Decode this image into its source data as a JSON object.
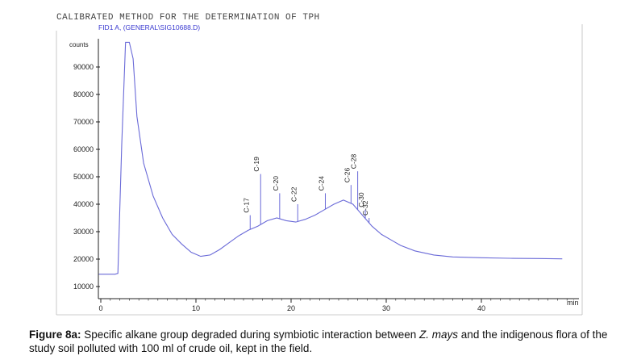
{
  "header": {
    "title": "CALIBRATED METHOD FOR THE DETERMINATION OF TPH",
    "subtitle": "FID1 A, (GENERAL\\SIG10688.D)"
  },
  "chart_data": {
    "type": "line",
    "ylabel": "counts",
    "xlabel": "min",
    "xlim": [
      0,
      50
    ],
    "ylim": [
      4000,
      100000
    ],
    "x_ticks": [
      0,
      10,
      20,
      30,
      40
    ],
    "y_ticks": [
      10000,
      20000,
      30000,
      40000,
      50000,
      60000,
      70000,
      80000,
      90000
    ],
    "grid": false,
    "baseline": {
      "x": [
        -0.2,
        1.5,
        1.8,
        2.2,
        2.6,
        3.0,
        3.4,
        3.8,
        4.5,
        5.5,
        6.5,
        7.5,
        8.5,
        9.5,
        10.5,
        11.5,
        12.5,
        13.5,
        14.5,
        15.5,
        16.5,
        17.5,
        18.5,
        19.5,
        20.5,
        21.5,
        22.5,
        23.5,
        24.5,
        25.5,
        26.5,
        27.5,
        28.5,
        29.5,
        30.5,
        31.5,
        33,
        35,
        37,
        40,
        43,
        46,
        48.5
      ],
      "y": [
        14500,
        14500,
        14800,
        62000,
        99000,
        99000,
        93000,
        72000,
        55000,
        43000,
        35000,
        29000,
        25500,
        22500,
        21000,
        21500,
        23500,
        26000,
        28500,
        30500,
        32000,
        34000,
        35000,
        34000,
        33500,
        34500,
        36000,
        38000,
        40000,
        41500,
        40000,
        36000,
        32000,
        29000,
        27000,
        25000,
        23000,
        21500,
        20800,
        20500,
        20300,
        20200,
        20100
      ]
    },
    "peaks": [
      {
        "label": "C-17",
        "x": 15.7,
        "y": 36000
      },
      {
        "label": "C-19",
        "x": 16.8,
        "y": 51000
      },
      {
        "label": "C-20",
        "x": 18.8,
        "y": 44000
      },
      {
        "label": "C-22",
        "x": 20.7,
        "y": 40000
      },
      {
        "label": "C-24",
        "x": 23.6,
        "y": 44000
      },
      {
        "label": "C-26",
        "x": 26.3,
        "y": 47000
      },
      {
        "label": "C-28",
        "x": 27.0,
        "y": 52000
      },
      {
        "label": "C-30",
        "x": 27.8,
        "y": 38000
      },
      {
        "label": "C-32",
        "x": 28.2,
        "y": 35000
      }
    ]
  },
  "caption": {
    "label": "Figure 8a:",
    "text_1": " Specific alkane group degraded during symbiotic interaction between ",
    "species": "Z. mays",
    "text_2": " and the indigenous flora of the study soil polluted with 100 ml of crude oil, kept in the field."
  }
}
